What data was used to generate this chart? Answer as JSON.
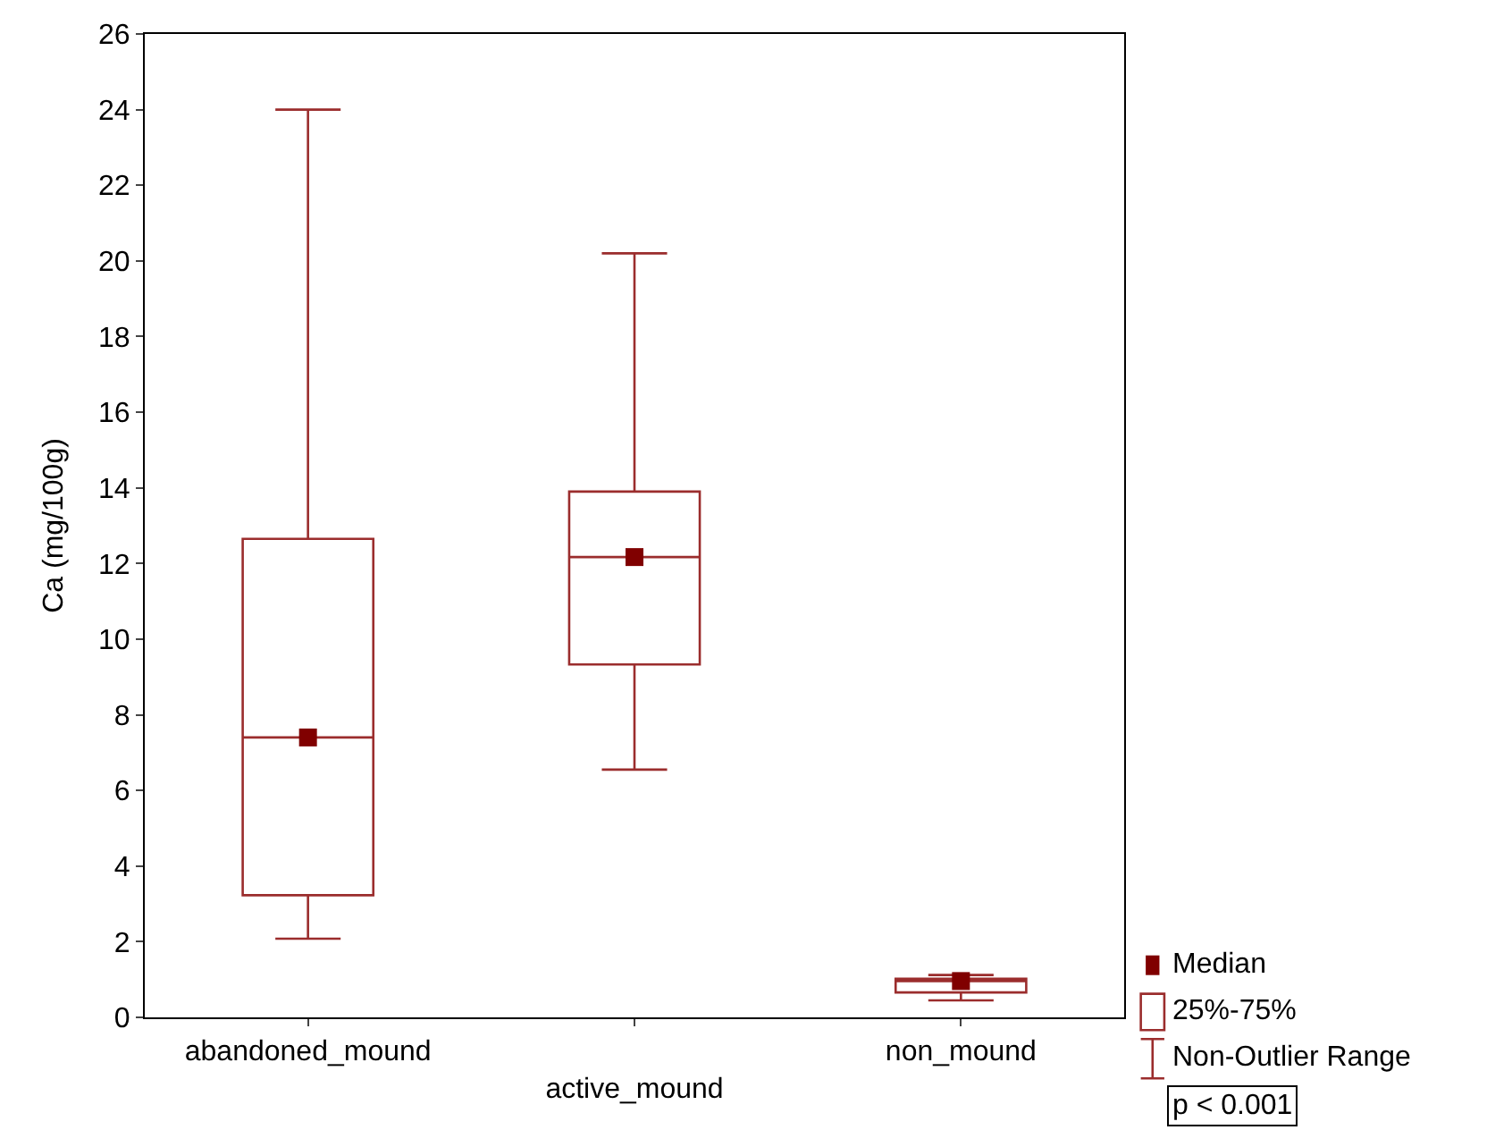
{
  "chart_data": {
    "type": "box",
    "ylabel": "Ca (mg/100g)",
    "categories": [
      "abandoned_mound",
      "active_mound",
      "non_mound"
    ],
    "series": [
      {
        "color": "#9b2d2d",
        "boxes": [
          {
            "low": 2.08,
            "q1": 3.23,
            "median": 7.4,
            "q3": 12.65,
            "high": 24.0
          },
          {
            "low": 6.55,
            "q1": 9.33,
            "median": 12.17,
            "q3": 13.9,
            "high": 20.2
          },
          {
            "low": 0.45,
            "q1": 0.66,
            "median": 0.96,
            "q3": 1.02,
            "high": 1.12
          }
        ]
      },
      {
        "type": "scatter",
        "color": "#800000",
        "x": [
          "abandoned_mound",
          "active_mound",
          "non_mound"
        ],
        "values": [
          7.4,
          12.17,
          0.96
        ]
      }
    ],
    "ylim": [
      0,
      26
    ],
    "yticks": [
      0,
      2,
      4,
      6,
      8,
      10,
      12,
      14,
      16,
      18,
      20,
      22,
      24,
      26
    ],
    "marker": "square",
    "annotations": [
      "Median",
      "25%-75%",
      "Non-Outlier Range",
      "p < 0.001"
    ]
  }
}
